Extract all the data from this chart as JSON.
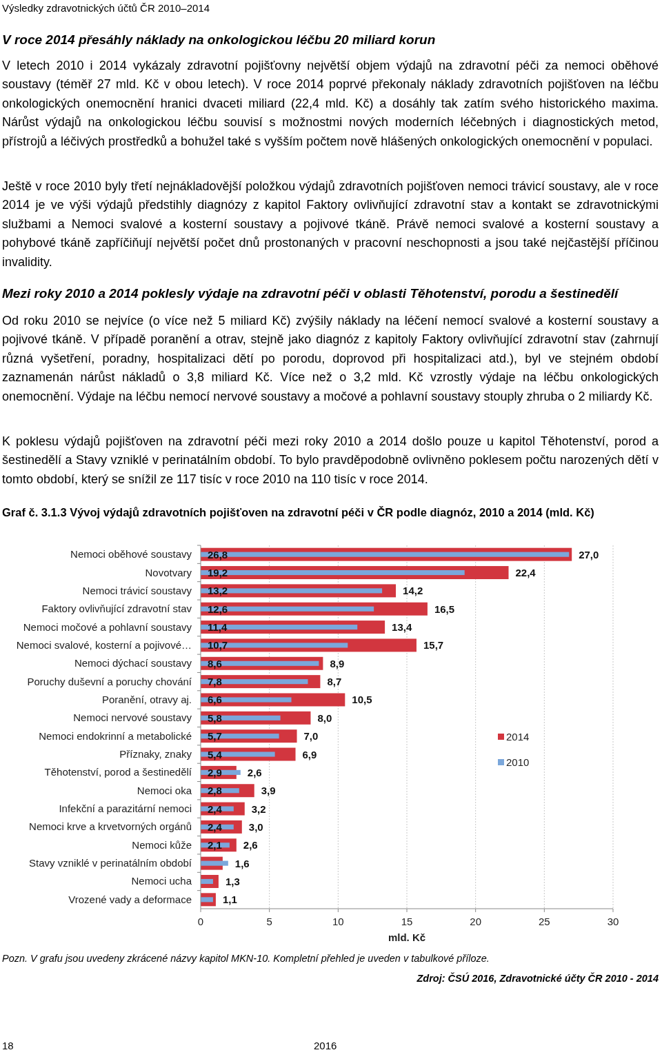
{
  "chart_data": {
    "type": "bar",
    "orientation": "horizontal",
    "title": "Graf č. 3.1.3 Vývoj výdajů zdravotních pojišťoven na zdravotní péči v ČR podle diagnóz, 2010 a 2014 (mld. Kč)",
    "xlabel": "mld. Kč",
    "categories": [
      "Nemoci oběhové soustavy",
      "Novotvary",
      "Nemoci trávicí soustavy",
      "Faktory ovlivňující zdravotní stav",
      "Nemoci močové a pohlavní soustavy",
      "Nemoci svalové, kosterní a pojivové…",
      "Nemoci dýchací soustavy",
      "Poruchy duševní a poruchy chování",
      "Poranění, otravy aj.",
      "Nemoci nervové soustavy",
      "Nemoci endokrinní a metabolické",
      "Příznaky, znaky",
      "Těhotenství, porod a šestinedělí",
      "Nemoci oka",
      "Infekční a parazitární nemoci",
      "Nemoci krve a krvetvorných orgánů",
      "Nemoci kůže",
      "Stavy vzniklé v perinatálním období",
      "Nemoci ucha",
      "Vrozené vady a deformace"
    ],
    "series": [
      {
        "name": "2014",
        "color": "#d2363f",
        "values": [
          27.0,
          22.4,
          14.2,
          16.5,
          13.4,
          15.7,
          8.9,
          8.7,
          10.5,
          8.0,
          7.0,
          6.9,
          2.6,
          3.9,
          3.2,
          3.0,
          2.6,
          1.6,
          1.3,
          1.1
        ],
        "value_labels": [
          "27,0",
          "22,4",
          "14,2",
          "16,5",
          "13,4",
          "15,7",
          "8,9",
          "8,7",
          "10,5",
          "8,0",
          "7,0",
          "6,9",
          "2,6",
          "3,9",
          "3,2",
          "3,0",
          "2,6",
          "1,6",
          "1,3",
          "1,1"
        ]
      },
      {
        "name": "2010",
        "color": "#7ba7db",
        "values": [
          26.8,
          19.2,
          13.2,
          12.6,
          11.4,
          10.7,
          8.6,
          7.8,
          6.6,
          5.8,
          5.7,
          5.4,
          2.9,
          2.8,
          2.4,
          2.4,
          2.1,
          2.0,
          0.9,
          0.9
        ],
        "value_labels": [
          "26,8",
          "19,2",
          "13,2",
          "12,6",
          "11,4",
          "10,7",
          "8,6",
          "7,8",
          "6,6",
          "5,8",
          "5,7",
          "5,4",
          "2,9",
          "2,8",
          "2,4",
          "2,4",
          "2,1",
          null,
          null,
          null
        ]
      }
    ],
    "xlim": [
      0,
      30
    ],
    "xticks": [
      0,
      5,
      10,
      15,
      20,
      25,
      30
    ],
    "grid": "x",
    "legend": "right",
    "annotations": [
      "Výsledky zdravotnických účtů ČR 2010–2014",
      "V roce 2014 přesáhly náklady na onkologickou léčbu 20 miliard korun",
      "V letech 2010 i 2014 vykázaly zdravotní pojišťovny největší objem výdajů na zdravotní péči za nemoci oběhové soustavy (téměř 27 mld. Kč v obou letech). V roce 2014 poprvé překonaly náklady zdravotních pojišťoven na léčbu onkologických onemocnění hranici dvaceti miliard (22,4 mld. Kč) a dosáhly tak zatím svého historického maxima. Nárůst výdajů na onkologickou léčbu souvisí s možnostmi nových moderních léčebných i diagnostických metod, přístrojů a léčivých prostředků a bohužel také s vyšším počtem nově hlášených onkologických onemocnění v populaci.",
      "Ještě v roce 2010 byly třetí nejnákladovější položkou výdajů zdravotních pojišťoven nemoci trávicí soustavy, ale v roce 2014 je ve výši výdajů předstihly diagnózy z kapitol Faktory ovlivňující zdravotní stav a kontakt se zdravotnickými službami a Nemoci svalové a kosterní soustavy a pojivové tkáně. Právě nemoci svalové a kosterní soustavy a pohybové tkáně zapříčiňují největší počet dnů prostonaných v pracovní neschopnosti a jsou také nejčastější příčinou invalidity.",
      "Mezi roky 2010 a 2014 poklesly výdaje na zdravotní péči v oblasti Těhotenství, porodu a šestinedělí",
      "Od roku 2010 se nejvíce (o více než 5 miliard Kč) zvýšily náklady na léčení nemocí svalové a kosterní soustavy a pojivové tkáně. V případě poranění a otrav, stejně jako diagnóz z kapitoly Faktory ovlivňující zdravotní stav (zahrnují různá vyšetření, poradny, hospitalizaci dětí po porodu, doprovod při hospitalizaci atd.), byl ve stejném období zaznamenán nárůst nákladů o 3,8 miliard Kč. Více než o 3,2 mld. Kč vzrostly výdaje na léčbu onkologických onemocnění. Výdaje na léčbu nemocí nervové soustavy a močové a pohlavní soustavy stouply zhruba o 2 miliardy Kč.",
      "K poklesu výdajů pojišťoven na zdravotní péči mezi roky 2010 a 2014 došlo pouze u kapitol Těhotenství, porod a šestinedělí a Stavy vzniklé v perinatálním období. To bylo pravděpodobně ovlivněno poklesem počtu narozených dětí v tomto období, který se snížil ze 117 tisíc v roce 2010 na 110 tisíc v roce 2014.",
      "Pozn. V grafu jsou uvedeny zkrácené názvy kapitol MKN-10. Kompletní přehled je uveden v tabulkové příloze.",
      "Zdroj: ČSÚ 2016, Zdravotnické účty ČR 2010 - 2014",
      "18",
      "2016"
    ]
  }
}
